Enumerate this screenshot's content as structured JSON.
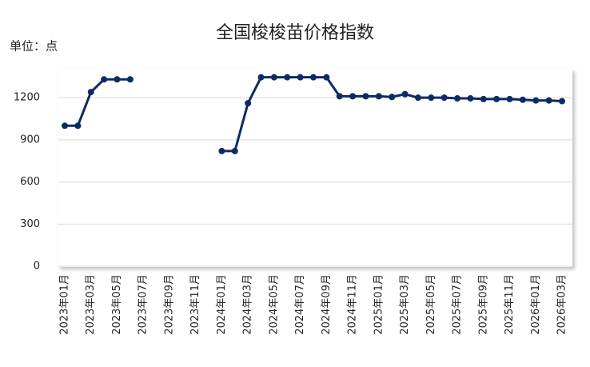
{
  "chart_data": {
    "type": "line",
    "title": "全国梭梭苗价格指数",
    "unit_label": "单位：点",
    "categories": [
      "2023年01月",
      null,
      "2023年03月",
      null,
      "2023年05月",
      null,
      "2023年07月",
      null,
      "2023年09月",
      null,
      "2023年11月",
      null,
      "2024年01月",
      null,
      "2024年03月",
      null,
      "2024年05月",
      null,
      "2024年07月",
      null,
      "2024年09月",
      null,
      "2024年11月",
      null,
      "2025年01月",
      null,
      "2025年03月",
      null,
      "2025年05月",
      null,
      "2025年07月",
      null,
      "2025年09月",
      null,
      "2025年11月",
      null,
      "2026年01月",
      null,
      "2026年03月"
    ],
    "series": [
      {
        "name": "全国梭梭苗价格指数",
        "color": "#0d2b63",
        "values": [
          1000,
          1000,
          1240,
          1330,
          1330,
          1330,
          null,
          null,
          null,
          null,
          null,
          null,
          820,
          820,
          1160,
          1345,
          1345,
          1345,
          1345,
          1345,
          1345,
          1210,
          1210,
          1210,
          1210,
          1205,
          1225,
          1200,
          1200,
          1200,
          1195,
          1195,
          1190,
          1190,
          1190,
          1185,
          1180,
          1180,
          1175
        ]
      }
    ],
    "ylim": [
      0,
      1400
    ],
    "yticks": [
      0,
      300,
      600,
      900,
      1200
    ],
    "grid": true
  }
}
